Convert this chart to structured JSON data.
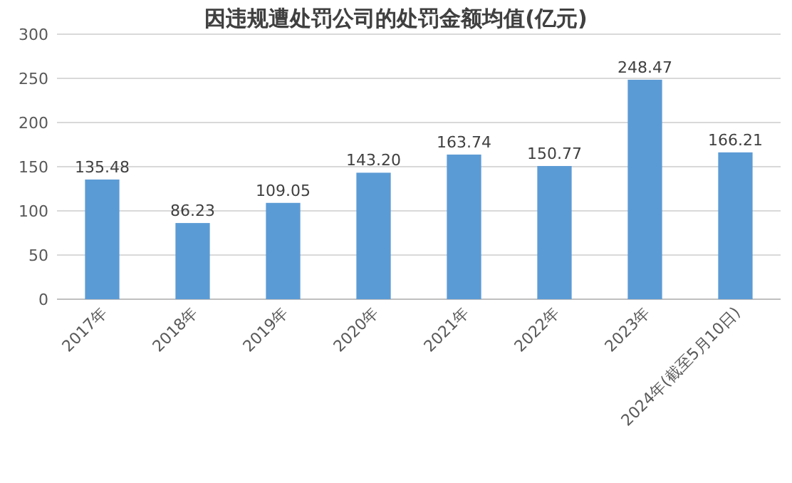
{
  "chart_data": {
    "type": "bar",
    "title": "因违规遭处罚公司的处罚金额均值(亿元)",
    "categories": [
      "2017年",
      "2018年",
      "2019年",
      "2020年",
      "2021年",
      "2022年",
      "2023年",
      "2024年(截至5月10日)"
    ],
    "values": [
      135.48,
      86.23,
      109.05,
      143.2,
      163.74,
      150.77,
      248.47,
      166.21
    ],
    "value_labels": [
      "135.48",
      "86.23",
      "109.05",
      "143.20",
      "163.74",
      "150.77",
      "248.47",
      "166.21"
    ],
    "color": "#5b9bd5",
    "ylim": [
      0,
      300
    ],
    "yticks": [
      0,
      50,
      100,
      150,
      200,
      250,
      300
    ],
    "grid": "y"
  }
}
